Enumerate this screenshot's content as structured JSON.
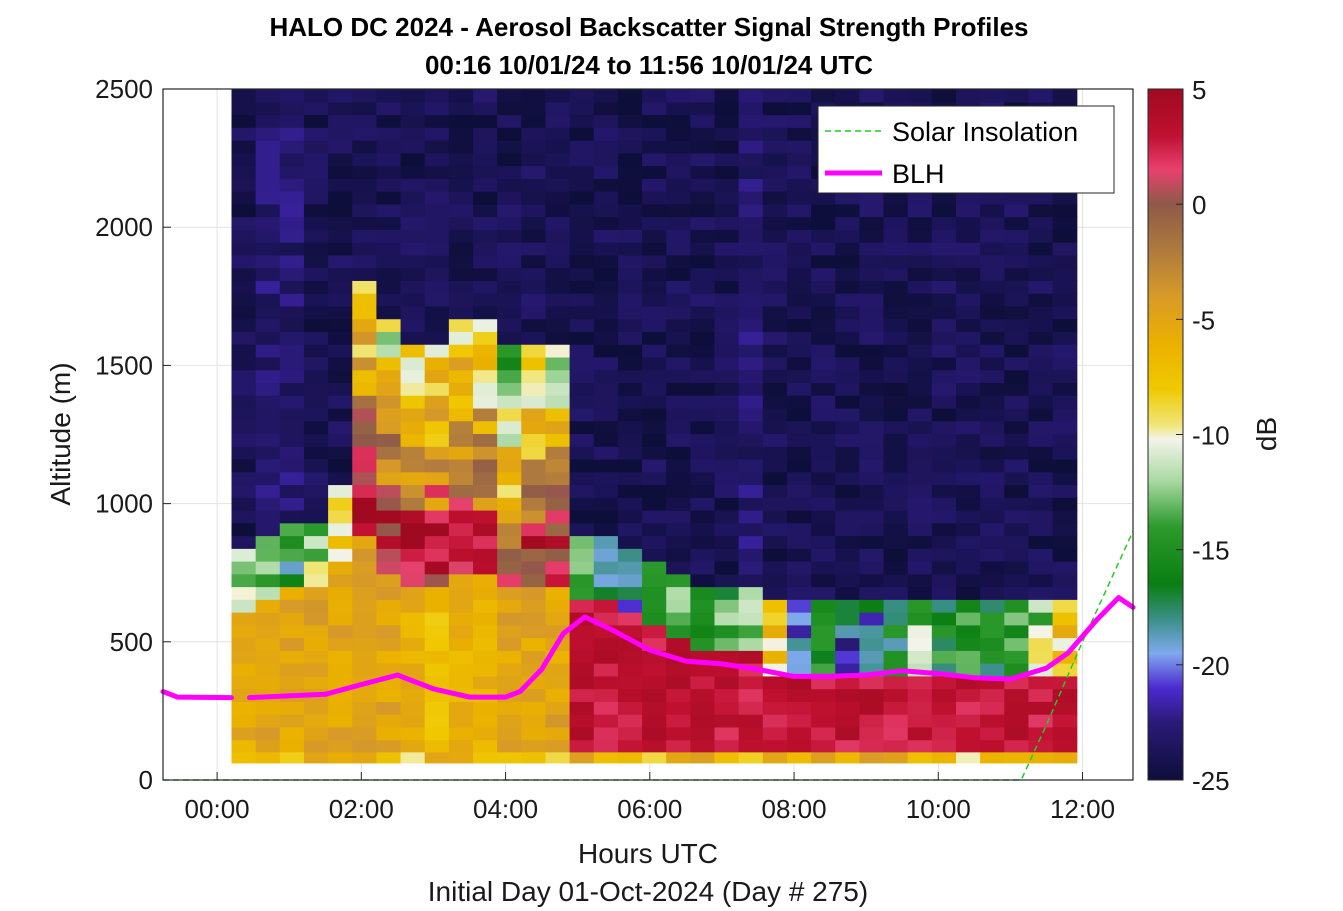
{
  "chart_data": {
    "type": "heatmap",
    "title": "HALO DC 2024 - Aerosol Backscatter Signal Strength Profiles",
    "subtitle": "00:16 10/01/24 to 11:56 10/01/24  UTC",
    "xlabel": "Hours UTC",
    "footer": "Initial Day 01-Oct-2024 (Day # 275)",
    "ylabel": "Altitude (m)",
    "colorbar_label": "dB",
    "xlim": [
      -0.75,
      12.7
    ],
    "ylim": [
      0,
      2500
    ],
    "x_ticks": [
      {
        "value": 0,
        "label": "00:00"
      },
      {
        "value": 2,
        "label": "02:00"
      },
      {
        "value": 4,
        "label": "04:00"
      },
      {
        "value": 6,
        "label": "06:00"
      },
      {
        "value": 8,
        "label": "08:00"
      },
      {
        "value": 10,
        "label": "10:00"
      },
      {
        "value": 12,
        "label": "12:00"
      }
    ],
    "y_ticks": [
      {
        "value": 0,
        "label": "0"
      },
      {
        "value": 500,
        "label": "500"
      },
      {
        "value": 1000,
        "label": "1000"
      },
      {
        "value": 1500,
        "label": "1500"
      },
      {
        "value": 2000,
        "label": "2000"
      },
      {
        "value": 2500,
        "label": "2500"
      }
    ],
    "colorbar_ticks": [
      {
        "value": 5,
        "label": "5"
      },
      {
        "value": 0,
        "label": "0"
      },
      {
        "value": -5,
        "label": "-5"
      },
      {
        "value": -10,
        "label": "-10"
      },
      {
        "value": -15,
        "label": "-15"
      },
      {
        "value": -20,
        "label": "-20"
      },
      {
        "value": -25,
        "label": "-25"
      }
    ],
    "clim": [
      -25,
      5
    ],
    "grid": true,
    "legend_position": "top-right",
    "heatmap": {
      "x_start": 0.2,
      "x_end": 11.92,
      "columns": 35,
      "y_bottom": 100,
      "y_top": 2500,
      "rows": 52,
      "columns_profiles_db": [
        {
          "boundary": 600,
          "low": -5.5,
          "mid": -12,
          "top": -24
        },
        {
          "boundary": 650,
          "low": -5,
          "mid": -14,
          "top": -23
        },
        {
          "boundary": 700,
          "low": -5,
          "mid": -16,
          "top": -23
        },
        {
          "boundary": 700,
          "low": -5,
          "mid": -12,
          "top": -24
        },
        {
          "boundary": 800,
          "low": -5,
          "mid": -10,
          "top": -24
        },
        {
          "boundary": 900,
          "low": -5,
          "mid": 3,
          "top": -24
        },
        {
          "boundary": 750,
          "low": -5,
          "mid": 3,
          "top": -24
        },
        {
          "boundary": 700,
          "low": -6,
          "mid": 4,
          "top": -24
        },
        {
          "boundary": 700,
          "low": -7,
          "mid": 3,
          "top": -24
        },
        {
          "boundary": 750,
          "low": -6,
          "mid": 3,
          "top": -24
        },
        {
          "boundary": 750,
          "low": -6,
          "mid": 2,
          "top": -24
        },
        {
          "boundary": 700,
          "low": -5,
          "mid": -1,
          "top": -24
        },
        {
          "boundary": 700,
          "low": -5,
          "mid": 2,
          "top": -24
        },
        {
          "boundary": 700,
          "low": -5,
          "mid": 2,
          "top": -24
        },
        {
          "boundary": 650,
          "low": 3,
          "mid": -14,
          "top": -24
        },
        {
          "boundary": 650,
          "low": 3,
          "mid": -18,
          "top": -24
        },
        {
          "boundary": 600,
          "low": 3,
          "mid": -20,
          "top": -24
        },
        {
          "boundary": 550,
          "low": 3,
          "mid": -15,
          "top": -24
        },
        {
          "boundary": 500,
          "low": 3,
          "mid": -12,
          "top": -24
        },
        {
          "boundary": 450,
          "low": 3,
          "mid": -16,
          "top": -24
        },
        {
          "boundary": 450,
          "low": 3,
          "mid": -14,
          "top": -24
        },
        {
          "boundary": 450,
          "low": 3,
          "mid": -14,
          "top": -23
        },
        {
          "boundary": 400,
          "low": 3,
          "mid": -8,
          "top": -24
        },
        {
          "boundary": 400,
          "low": 3,
          "mid": -20,
          "top": -24
        },
        {
          "boundary": 400,
          "low": 3,
          "mid": -16,
          "top": -24
        },
        {
          "boundary": 400,
          "low": 3,
          "mid": -20,
          "top": -24
        },
        {
          "boundary": 400,
          "low": 3,
          "mid": -19,
          "top": -24
        },
        {
          "boundary": 400,
          "low": 3,
          "mid": -16,
          "top": -24
        },
        {
          "boundary": 400,
          "low": 3,
          "mid": -12,
          "top": -24
        },
        {
          "boundary": 400,
          "low": 3,
          "mid": -15,
          "top": -24
        },
        {
          "boundary": 400,
          "low": 3,
          "mid": -15,
          "top": -24
        },
        {
          "boundary": 400,
          "low": 3,
          "mid": -16,
          "top": -24
        },
        {
          "boundary": 400,
          "low": 3,
          "mid": -15,
          "top": -24
        },
        {
          "boundary": 400,
          "low": 3,
          "mid": -12,
          "top": -24
        },
        {
          "boundary": 400,
          "low": 3,
          "mid": -8,
          "top": -24
        }
      ],
      "surface_row_db": -7
    },
    "series": [
      {
        "name": "Solar Insolation",
        "style": "dashed",
        "color": "#22cc22",
        "x": [
          -0.75,
          11.15,
          11.5,
          12.0,
          12.7
        ],
        "y": [
          0,
          0,
          200,
          500,
          900
        ]
      },
      {
        "name": "BLH",
        "style": "solid",
        "color": "#ff00ff",
        "segments": [
          {
            "x": [
              -0.75,
              -0.55,
              0.2
            ],
            "y": [
              320,
              300,
              298
            ]
          },
          {
            "x": [
              0.45,
              1.5,
              2.0,
              2.5,
              3.0,
              3.5,
              4.0,
              4.2,
              4.5,
              4.8,
              5.1,
              5.5,
              6.0,
              6.5,
              7.0,
              7.5,
              8.0,
              8.5,
              9.0,
              9.5,
              10.0,
              10.5,
              11.0,
              11.5,
              11.8,
              12.2,
              12.5,
              12.7
            ],
            "y": [
              298,
              310,
              345,
              380,
              330,
              300,
              300,
              320,
              400,
              530,
              590,
              540,
              470,
              430,
              420,
              400,
              375,
              375,
              380,
              395,
              385,
              370,
              365,
              405,
              460,
              580,
              660,
              625
            ]
          }
        ]
      }
    ]
  }
}
